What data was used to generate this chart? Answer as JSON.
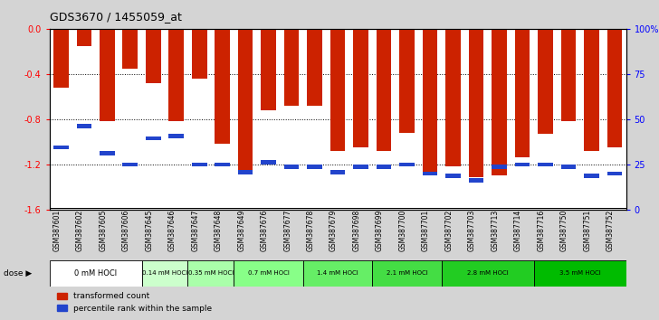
{
  "title": "GDS3670 / 1455059_at",
  "samples": [
    "GSM387601",
    "GSM387602",
    "GSM387605",
    "GSM387606",
    "GSM387645",
    "GSM387646",
    "GSM387647",
    "GSM387648",
    "GSM387649",
    "GSM387676",
    "GSM387677",
    "GSM387678",
    "GSM387679",
    "GSM387698",
    "GSM387699",
    "GSM387700",
    "GSM387701",
    "GSM387702",
    "GSM387703",
    "GSM387713",
    "GSM387714",
    "GSM387716",
    "GSM387750",
    "GSM387751",
    "GSM387752"
  ],
  "bar_values": [
    -0.52,
    -0.15,
    -0.82,
    -0.35,
    -0.48,
    -0.82,
    -0.44,
    -1.02,
    -1.26,
    -0.72,
    -0.68,
    -0.68,
    -1.08,
    -1.05,
    -1.08,
    -0.92,
    -1.27,
    -1.22,
    -1.31,
    -1.3,
    -1.14,
    -0.93,
    -0.82,
    -1.08,
    -1.05
  ],
  "percentile_values": [
    -1.05,
    -0.86,
    -1.1,
    -1.2,
    -0.97,
    -0.95,
    -1.2,
    -1.2,
    -1.27,
    -1.18,
    -1.22,
    -1.22,
    -1.27,
    -1.22,
    -1.22,
    -1.2,
    -1.28,
    -1.3,
    -1.34,
    -1.22,
    -1.2,
    -1.2,
    -1.22,
    -1.3,
    -1.28
  ],
  "dose_groups": [
    {
      "label": "0 mM HOCl",
      "start": 0,
      "end": 4
    },
    {
      "label": "0.14 mM HOCl",
      "start": 4,
      "end": 6
    },
    {
      "label": "0.35 mM HOCl",
      "start": 6,
      "end": 8
    },
    {
      "label": "0.7 mM HOCl",
      "start": 8,
      "end": 11
    },
    {
      "label": "1.4 mM HOCl",
      "start": 11,
      "end": 14
    },
    {
      "label": "2.1 mM HOCl",
      "start": 14,
      "end": 17
    },
    {
      "label": "2.8 mM HOCl",
      "start": 17,
      "end": 21
    },
    {
      "label": "3.5 mM HOCl",
      "start": 21,
      "end": 25
    }
  ],
  "dose_colors": [
    "#ffffff",
    "#ccffcc",
    "#aaffaa",
    "#88ff88",
    "#66ee66",
    "#44dd44",
    "#22cc22",
    "#00bb00"
  ],
  "bar_color": "#cc2200",
  "percentile_color": "#2244cc",
  "ylim_left": [
    -1.6,
    0.0
  ],
  "yticks_left": [
    0.0,
    -0.4,
    -0.8,
    -1.2,
    -1.6
  ],
  "yticks_right": [
    0,
    25,
    50,
    75,
    100
  ],
  "bg_color": "#d4d4d4",
  "plot_bg": "#ffffff"
}
